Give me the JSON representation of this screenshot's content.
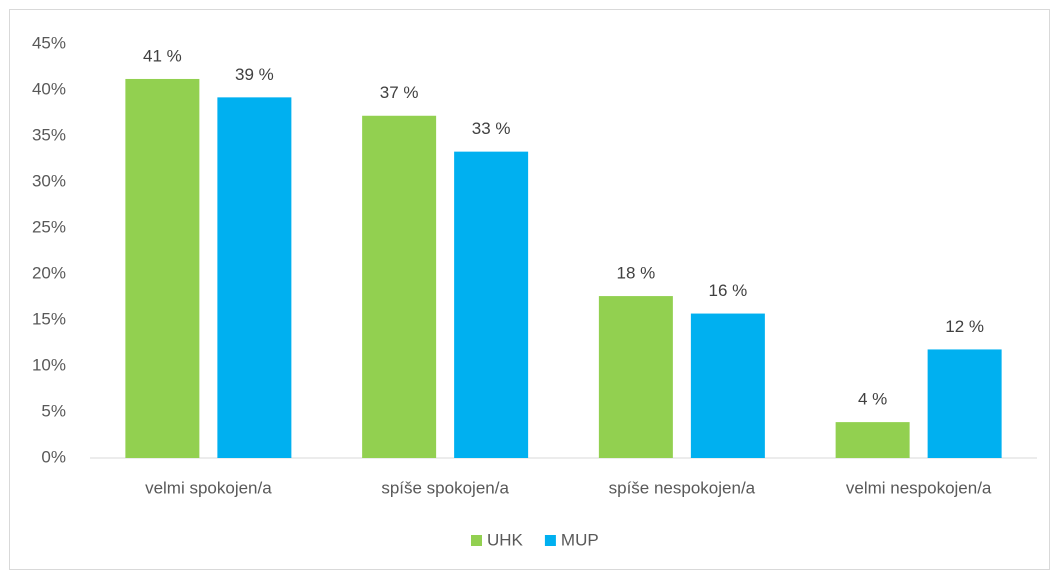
{
  "chart_data": {
    "type": "bar",
    "categories": [
      "velmi spokojen/a",
      "spíše spokojen/a",
      "spíše nespokojen/a",
      "velmi nespokojen/a"
    ],
    "series": [
      {
        "name": "UHK",
        "color": "#92d050",
        "values": [
          41.2,
          37.2,
          17.6,
          3.9
        ],
        "value_labels": [
          "41 %",
          "37 %",
          "18 %",
          "4 %"
        ]
      },
      {
        "name": "MUP",
        "color": "#00b0f0",
        "values": [
          39.2,
          33.3,
          15.7,
          11.8
        ],
        "value_labels": [
          "39 %",
          "33 %",
          "16 %",
          "12 %"
        ]
      }
    ],
    "ylim": [
      0,
      45
    ],
    "yticks": [
      {
        "value": 0,
        "label": "0%"
      },
      {
        "value": 5,
        "label": "5%"
      },
      {
        "value": 10,
        "label": "10%"
      },
      {
        "value": 15,
        "label": "15%"
      },
      {
        "value": 20,
        "label": "20%"
      },
      {
        "value": 25,
        "label": "25%"
      },
      {
        "value": 30,
        "label": "30%"
      },
      {
        "value": 35,
        "label": "35%"
      },
      {
        "value": 40,
        "label": "40%"
      },
      {
        "value": 45,
        "label": "45%"
      }
    ],
    "grid": false,
    "legend": "bottom"
  }
}
